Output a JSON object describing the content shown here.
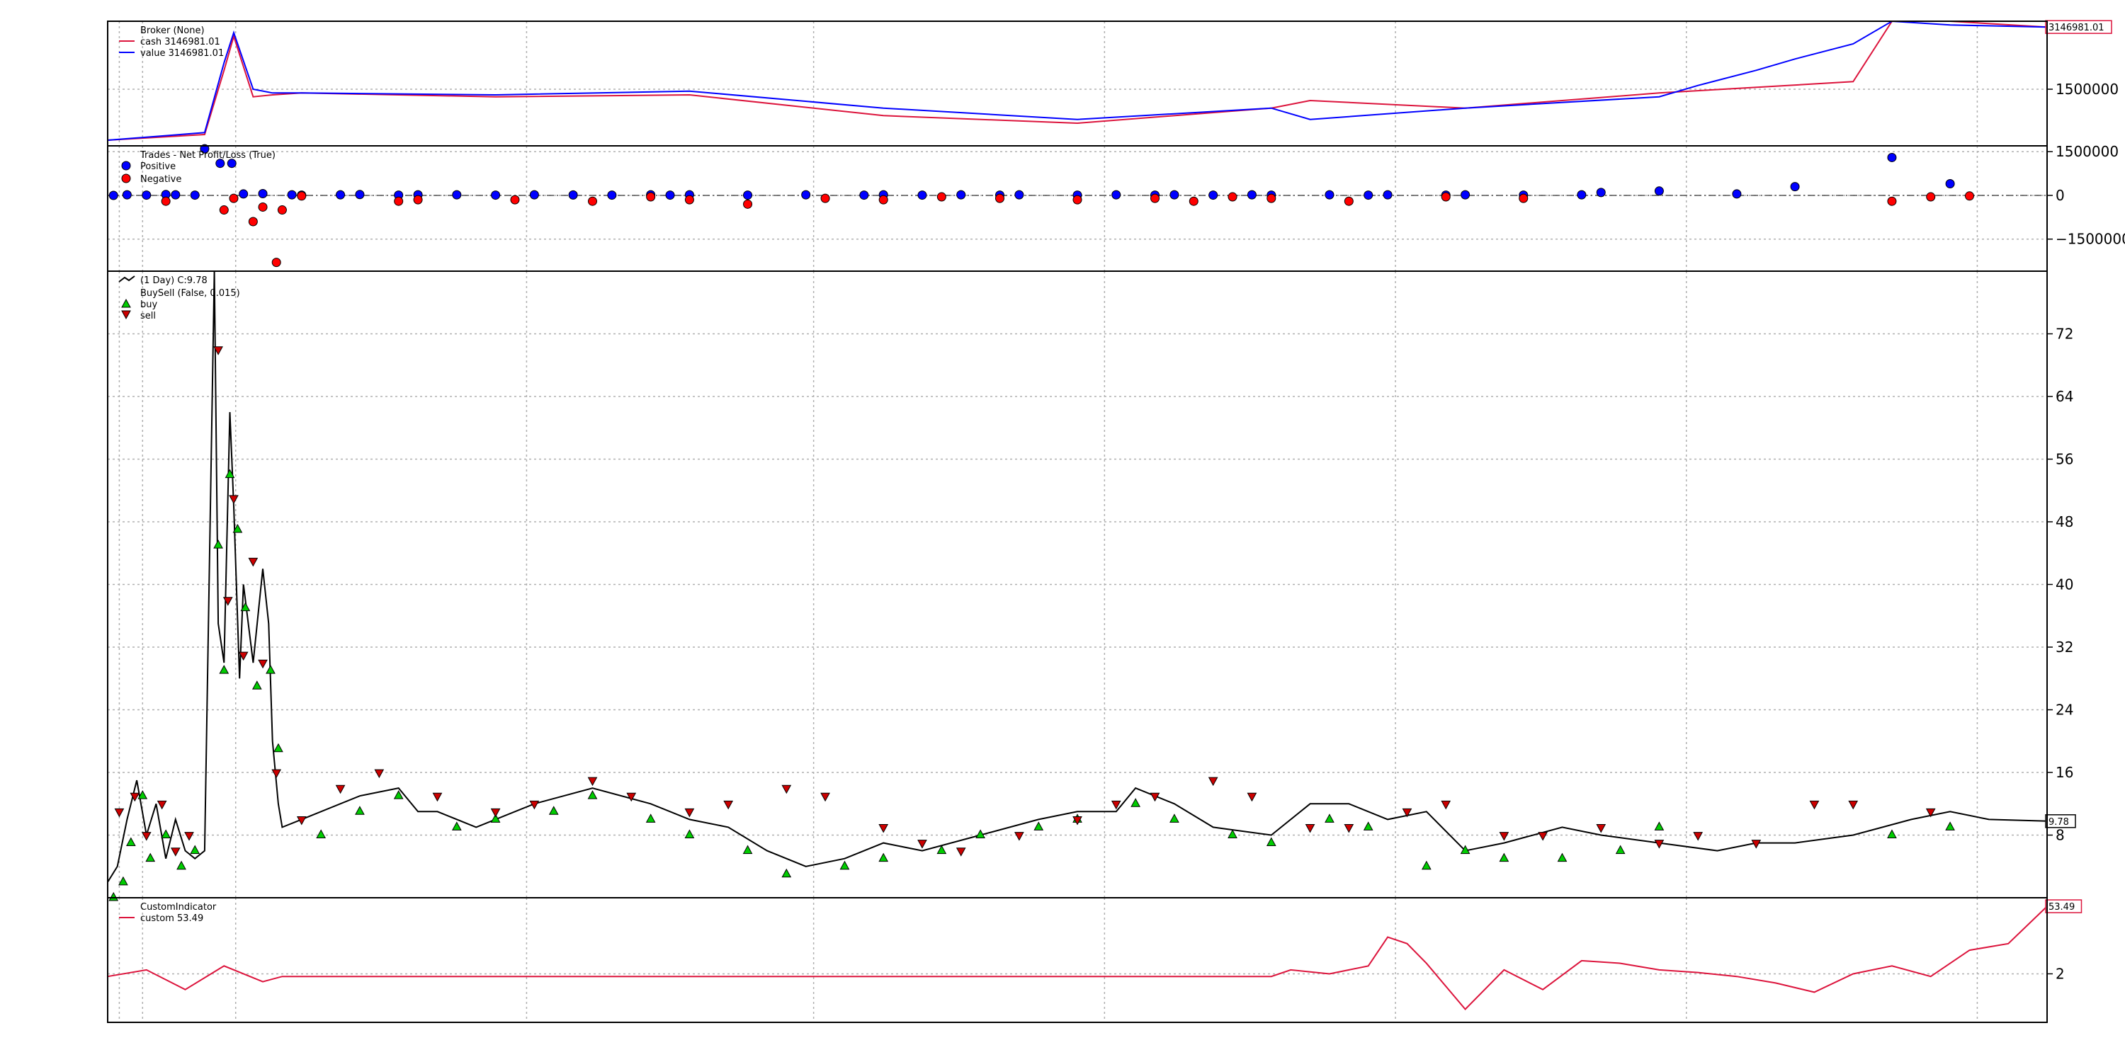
{
  "chart_data": [
    {
      "type": "line",
      "panel": "broker",
      "legend_title": "Broker (None)",
      "series": [
        {
          "name": "cash 3146981.01",
          "color": "#dc143c",
          "x": [
            0,
            0.05,
            0.06,
            0.065,
            0.075,
            0.085,
            0.1,
            0.2,
            0.3,
            0.4,
            0.5,
            0.6,
            0.62,
            0.7,
            0.8,
            0.9,
            0.92,
            0.95,
            1.0
          ],
          "values": [
            150000,
            300000,
            2000000,
            2900000,
            1300000,
            1350000,
            1400000,
            1300000,
            1350000,
            800000,
            600000,
            1000000,
            1200000,
            1000000,
            1400000,
            1700000,
            3300000,
            3300000,
            3146981
          ]
        },
        {
          "name": "value 3146981.01",
          "color": "#0000ff",
          "x": [
            0,
            0.05,
            0.06,
            0.065,
            0.075,
            0.085,
            0.1,
            0.2,
            0.3,
            0.4,
            0.5,
            0.6,
            0.62,
            0.7,
            0.8,
            0.82,
            0.85,
            0.87,
            0.9,
            0.92,
            0.95,
            1.0
          ],
          "values": [
            150000,
            350000,
            2200000,
            3000000,
            1500000,
            1400000,
            1400000,
            1350000,
            1450000,
            1000000,
            700000,
            1000000,
            700000,
            1000000,
            1300000,
            1600000,
            2000000,
            2300000,
            2700000,
            3300000,
            3200000,
            3146981
          ]
        }
      ],
      "yticks": [
        1500000
      ],
      "last_value_label": "3146981.01"
    },
    {
      "type": "scatter",
      "panel": "trades",
      "legend_title": "Trades - Net Profit/Loss (True)",
      "series": [
        {
          "name": "Positive",
          "color": "#0000ff",
          "x": [
            0.003,
            0.01,
            0.02,
            0.03,
            0.035,
            0.045,
            0.05,
            0.058,
            0.064,
            0.07,
            0.08,
            0.095,
            0.1,
            0.12,
            0.13,
            0.15,
            0.16,
            0.18,
            0.2,
            0.22,
            0.24,
            0.26,
            0.28,
            0.29,
            0.3,
            0.33,
            0.36,
            0.39,
            0.4,
            0.42,
            0.44,
            0.46,
            0.47,
            0.5,
            0.52,
            0.54,
            0.55,
            0.57,
            0.59,
            0.6,
            0.63,
            0.65,
            0.66,
            0.69,
            0.7,
            0.73,
            0.76,
            0.77,
            0.8,
            0.84,
            0.87,
            0.92,
            0.95
          ],
          "values": [
            0,
            20000,
            10000,
            30000,
            20000,
            10000,
            1600000,
            1100000,
            1100000,
            50000,
            60000,
            20000,
            10000,
            20000,
            30000,
            10000,
            20000,
            20000,
            10000,
            20000,
            15000,
            10000,
            20000,
            10000,
            20000,
            10000,
            20000,
            10000,
            20000,
            10000,
            20000,
            10000,
            20000,
            10000,
            20000,
            10000,
            20000,
            10000,
            20000,
            10000,
            20000,
            10000,
            20000,
            10000,
            20000,
            10000,
            20000,
            100000,
            150000,
            50000,
            300000,
            1300000,
            400000
          ]
        },
        {
          "name": "Negative",
          "color": "#ff0000",
          "x": [
            0.03,
            0.06,
            0.065,
            0.075,
            0.08,
            0.087,
            0.09,
            0.1,
            0.15,
            0.16,
            0.21,
            0.25,
            0.28,
            0.3,
            0.33,
            0.37,
            0.4,
            0.43,
            0.46,
            0.5,
            0.54,
            0.56,
            0.58,
            0.6,
            0.64,
            0.69,
            0.73,
            0.92,
            0.94,
            0.96
          ],
          "values": [
            -200000,
            -500000,
            -100000,
            -900000,
            -400000,
            -2300000,
            -500000,
            -20000,
            -200000,
            -150000,
            -150000,
            -200000,
            -50000,
            -150000,
            -300000,
            -100000,
            -150000,
            -50000,
            -100000,
            -150000,
            -100000,
            -200000,
            -50000,
            -100000,
            -200000,
            -50000,
            -100000,
            -200000,
            -50000,
            -20000
          ]
        }
      ],
      "yticks": [
        1500000,
        0,
        -1500000
      ],
      "ytick_labels": [
        "1500000",
        "0",
        "−1500000"
      ]
    },
    {
      "type": "line",
      "panel": "price",
      "legend": [
        "(1 Day) C:9.78",
        "BuySell (False, 0.015)",
        "buy",
        "sell"
      ],
      "series": [
        {
          "name": "(1 Day) C:9.78",
          "color": "#000000",
          "x": [
            0,
            0.005,
            0.01,
            0.015,
            0.02,
            0.025,
            0.03,
            0.035,
            0.04,
            0.045,
            0.05,
            0.055,
            0.057,
            0.06,
            0.063,
            0.065,
            0.068,
            0.07,
            0.075,
            0.08,
            0.083,
            0.085,
            0.088,
            0.09,
            0.1,
            0.13,
            0.15,
            0.16,
            0.17,
            0.19,
            0.22,
            0.25,
            0.28,
            0.3,
            0.32,
            0.34,
            0.36,
            0.38,
            0.4,
            0.42,
            0.45,
            0.48,
            0.5,
            0.52,
            0.53,
            0.55,
            0.57,
            0.6,
            0.62,
            0.64,
            0.66,
            0.68,
            0.7,
            0.72,
            0.75,
            0.77,
            0.8,
            0.83,
            0.85,
            0.87,
            0.9,
            0.93,
            0.95,
            0.97,
            1.0
          ],
          "values": [
            2,
            4,
            10,
            15,
            8,
            12,
            5,
            10,
            6,
            5,
            6,
            80,
            35,
            30,
            62,
            50,
            28,
            40,
            30,
            42,
            35,
            20,
            12,
            9,
            10,
            13,
            14,
            11,
            11,
            9,
            12,
            14,
            12,
            10,
            9,
            6,
            4,
            5,
            7,
            6,
            8,
            10,
            11,
            11,
            14,
            12,
            9,
            8,
            12,
            12,
            10,
            11,
            6,
            7,
            9,
            8,
            7,
            6,
            7,
            7,
            8,
            10,
            11,
            10,
            9.78
          ]
        }
      ],
      "buy_markers": {
        "color": "#00cc00",
        "x": [
          0.003,
          0.008,
          0.012,
          0.018,
          0.022,
          0.03,
          0.038,
          0.045,
          0.057,
          0.06,
          0.063,
          0.067,
          0.071,
          0.077,
          0.084,
          0.088,
          0.11,
          0.13,
          0.15,
          0.18,
          0.2,
          0.23,
          0.25,
          0.28,
          0.3,
          0.33,
          0.35,
          0.38,
          0.4,
          0.43,
          0.45,
          0.48,
          0.5,
          0.53,
          0.55,
          0.58,
          0.6,
          0.63,
          0.65,
          0.68,
          0.7,
          0.72,
          0.75,
          0.78,
          0.8,
          0.92,
          0.95
        ],
        "values": [
          1,
          3,
          8,
          14,
          6,
          9,
          5,
          7,
          46,
          30,
          55,
          48,
          38,
          28,
          30,
          20,
          9,
          12,
          14,
          10,
          11,
          12,
          14,
          11,
          9,
          7,
          4,
          5,
          6,
          7,
          9,
          10,
          11,
          13,
          11,
          9,
          8,
          11,
          10,
          5,
          7,
          6,
          6,
          7,
          10,
          9,
          10
        ]
      },
      "sell_markers": {
        "color": "#cc0000",
        "x": [
          0.006,
          0.014,
          0.02,
          0.028,
          0.035,
          0.042,
          0.057,
          0.062,
          0.065,
          0.07,
          0.075,
          0.08,
          0.087,
          0.1,
          0.12,
          0.14,
          0.17,
          0.2,
          0.22,
          0.25,
          0.27,
          0.3,
          0.32,
          0.35,
          0.37,
          0.4,
          0.42,
          0.44,
          0.47,
          0.5,
          0.52,
          0.54,
          0.57,
          0.59,
          0.62,
          0.64,
          0.67,
          0.69,
          0.72,
          0.74,
          0.77,
          0.8,
          0.82,
          0.85,
          0.88,
          0.9,
          0.94
        ],
        "values": [
          10,
          12,
          7,
          11,
          5,
          7,
          69,
          37,
          50,
          30,
          42,
          29,
          15,
          9,
          13,
          15,
          12,
          10,
          11,
          14,
          12,
          10,
          11,
          13,
          12,
          8,
          6,
          5,
          7,
          9,
          11,
          12,
          14,
          12,
          8,
          8,
          10,
          11,
          7,
          7,
          8,
          6,
          7,
          6,
          11,
          11,
          10
        ]
      },
      "ylim": [
        0,
        80
      ],
      "yticks": [
        8,
        16,
        24,
        32,
        40,
        48,
        56,
        64,
        72
      ],
      "last_value_label": "9.78"
    },
    {
      "type": "line",
      "panel": "indicator",
      "legend_title": "CustomIndicator",
      "series": [
        {
          "name": "custom 53.49",
          "color": "#dc143c",
          "x": [
            0,
            0.02,
            0.04,
            0.06,
            0.08,
            0.09,
            0.2,
            0.4,
            0.6,
            0.61,
            0.63,
            0.65,
            0.66,
            0.67,
            0.68,
            0.7,
            0.72,
            0.74,
            0.76,
            0.78,
            0.8,
            0.82,
            0.84,
            0.86,
            0.88,
            0.9,
            0.92,
            0.94,
            0.96,
            0.98,
            1.0
          ],
          "values": [
            0,
            5,
            -10,
            8,
            -4,
            0,
            0,
            0,
            0,
            5,
            2,
            8,
            30,
            25,
            10,
            -25,
            5,
            -10,
            12,
            10,
            5,
            3,
            0,
            -5,
            -12,
            2,
            8,
            0,
            20,
            25,
            53.49
          ]
        }
      ],
      "yticks": [
        2
      ],
      "last_value_label": "53.49"
    }
  ],
  "x_gridlines": [
    0.006,
    0.018,
    0.066,
    0.216,
    0.364,
    0.514,
    0.664,
    0.814,
    0.964
  ]
}
